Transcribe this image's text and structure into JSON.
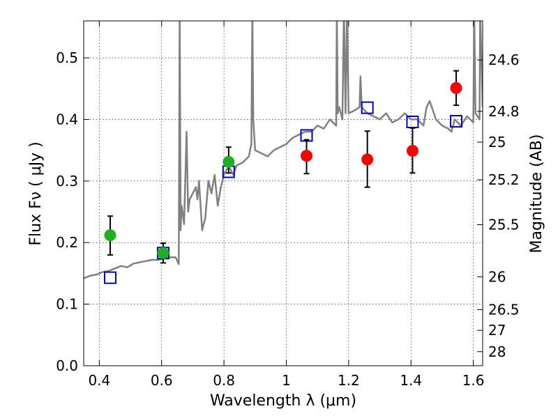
{
  "chart_data": {
    "type": "scatter",
    "xlabel": "Wavelength  λ (μm)",
    "ylabel": "Flux  Fν  ( μJy )",
    "ylabel_right": "Magnitude (AB)",
    "xlim": [
      0.35,
      1.63
    ],
    "ylim": [
      0.0,
      0.56
    ],
    "grid": true,
    "x_ticks": [
      0.4,
      0.6,
      0.8,
      1.0,
      1.2,
      1.4,
      1.6
    ],
    "x_tick_labels": [
      "0.4",
      "0.6",
      "0.8",
      "1",
      "1.2",
      "1.4",
      "1.6"
    ],
    "y_ticks": [
      0.0,
      0.1,
      0.2,
      0.3,
      0.4,
      0.5
    ],
    "y_tick_labels": [
      "0.0",
      "0.1",
      "0.2",
      "0.3",
      "0.4",
      "0.5"
    ],
    "right_ticks": [
      {
        "label": "24.6",
        "flux": 0.4966
      },
      {
        "label": "24.8",
        "flux": 0.4131
      },
      {
        "label": "25",
        "flux": 0.3631
      },
      {
        "label": "25.2",
        "flux": 0.302
      },
      {
        "label": "25.5",
        "flux": 0.2291
      },
      {
        "label": "26",
        "flux": 0.1445
      },
      {
        "label": "26.5",
        "flux": 0.0912
      },
      {
        "label": "27",
        "flux": 0.0575
      },
      {
        "label": "28",
        "flux": 0.0229
      }
    ],
    "series": [
      {
        "kind": "line",
        "color": "#808080",
        "x": [
          0.35,
          0.37,
          0.39,
          0.41,
          0.43,
          0.45,
          0.47,
          0.49,
          0.51,
          0.53,
          0.55,
          0.57,
          0.59,
          0.61,
          0.63,
          0.645,
          0.655,
          0.658,
          0.661,
          0.664,
          0.667,
          0.672,
          0.68,
          0.685,
          0.69,
          0.7,
          0.71,
          0.715,
          0.72,
          0.73,
          0.74,
          0.75,
          0.76,
          0.77,
          0.78,
          0.79,
          0.8,
          0.81,
          0.82,
          0.83,
          0.84,
          0.86,
          0.88,
          0.888,
          0.891,
          0.894,
          0.9,
          0.92,
          0.94,
          0.96,
          0.98,
          1.0,
          1.02,
          1.04,
          1.06,
          1.08,
          1.1,
          1.12,
          1.14,
          1.16,
          1.162,
          1.165,
          1.17,
          1.18,
          1.185,
          1.19,
          1.195,
          1.2,
          1.22,
          1.235,
          1.238,
          1.242,
          1.26,
          1.28,
          1.3,
          1.32,
          1.34,
          1.36,
          1.38,
          1.4,
          1.42,
          1.44,
          1.45,
          1.46,
          1.48,
          1.5,
          1.52,
          1.53,
          1.54,
          1.56,
          1.58,
          1.6,
          1.603,
          1.607,
          1.62,
          1.622,
          1.63
        ],
        "y": [
          0.142,
          0.146,
          0.148,
          0.152,
          0.154,
          0.158,
          0.162,
          0.16,
          0.166,
          0.168,
          0.17,
          0.172,
          0.172,
          0.174,
          0.176,
          0.176,
          0.165,
          0.58,
          0.22,
          0.26,
          0.25,
          0.23,
          0.38,
          0.25,
          0.27,
          0.28,
          0.29,
          0.27,
          0.3,
          0.22,
          0.24,
          0.3,
          0.28,
          0.31,
          0.26,
          0.29,
          0.31,
          0.32,
          0.32,
          0.31,
          0.325,
          0.33,
          0.34,
          0.36,
          0.58,
          0.4,
          0.35,
          0.345,
          0.34,
          0.35,
          0.355,
          0.36,
          0.37,
          0.375,
          0.38,
          0.38,
          0.39,
          0.385,
          0.4,
          0.39,
          0.58,
          0.41,
          0.42,
          0.4,
          0.58,
          0.41,
          0.58,
          0.41,
          0.415,
          0.42,
          0.47,
          0.42,
          0.41,
          0.405,
          0.4,
          0.41,
          0.395,
          0.4,
          0.41,
          0.4,
          0.4,
          0.39,
          0.42,
          0.43,
          0.4,
          0.39,
          0.385,
          0.38,
          0.4,
          0.39,
          0.405,
          0.395,
          0.58,
          0.41,
          0.4,
          0.58,
          0.42
        ]
      },
      {
        "kind": "open-square",
        "color": "#0000cc",
        "x": [
          0.435,
          0.605,
          0.815,
          1.065,
          1.26,
          1.405,
          1.545
        ],
        "y": [
          0.143,
          0.183,
          0.315,
          0.374,
          0.419,
          0.396,
          0.397
        ]
      },
      {
        "kind": "filled-circle",
        "color": "#1fb01f",
        "x": [
          0.435,
          0.605,
          0.815
        ],
        "y": [
          0.212,
          0.183,
          0.331
        ],
        "yerr_low": [
          0.18,
          0.167,
          0.313
        ],
        "yerr_high": [
          0.243,
          0.199,
          0.355
        ]
      },
      {
        "kind": "filled-circle",
        "color": "#ff0000",
        "x": [
          1.065,
          1.26,
          1.405,
          1.545
        ],
        "y": [
          0.341,
          0.335,
          0.349,
          0.451
        ],
        "yerr_low": [
          0.312,
          0.29,
          0.313,
          0.423
        ],
        "yerr_high": [
          0.367,
          0.381,
          0.386,
          0.479
        ]
      }
    ]
  }
}
